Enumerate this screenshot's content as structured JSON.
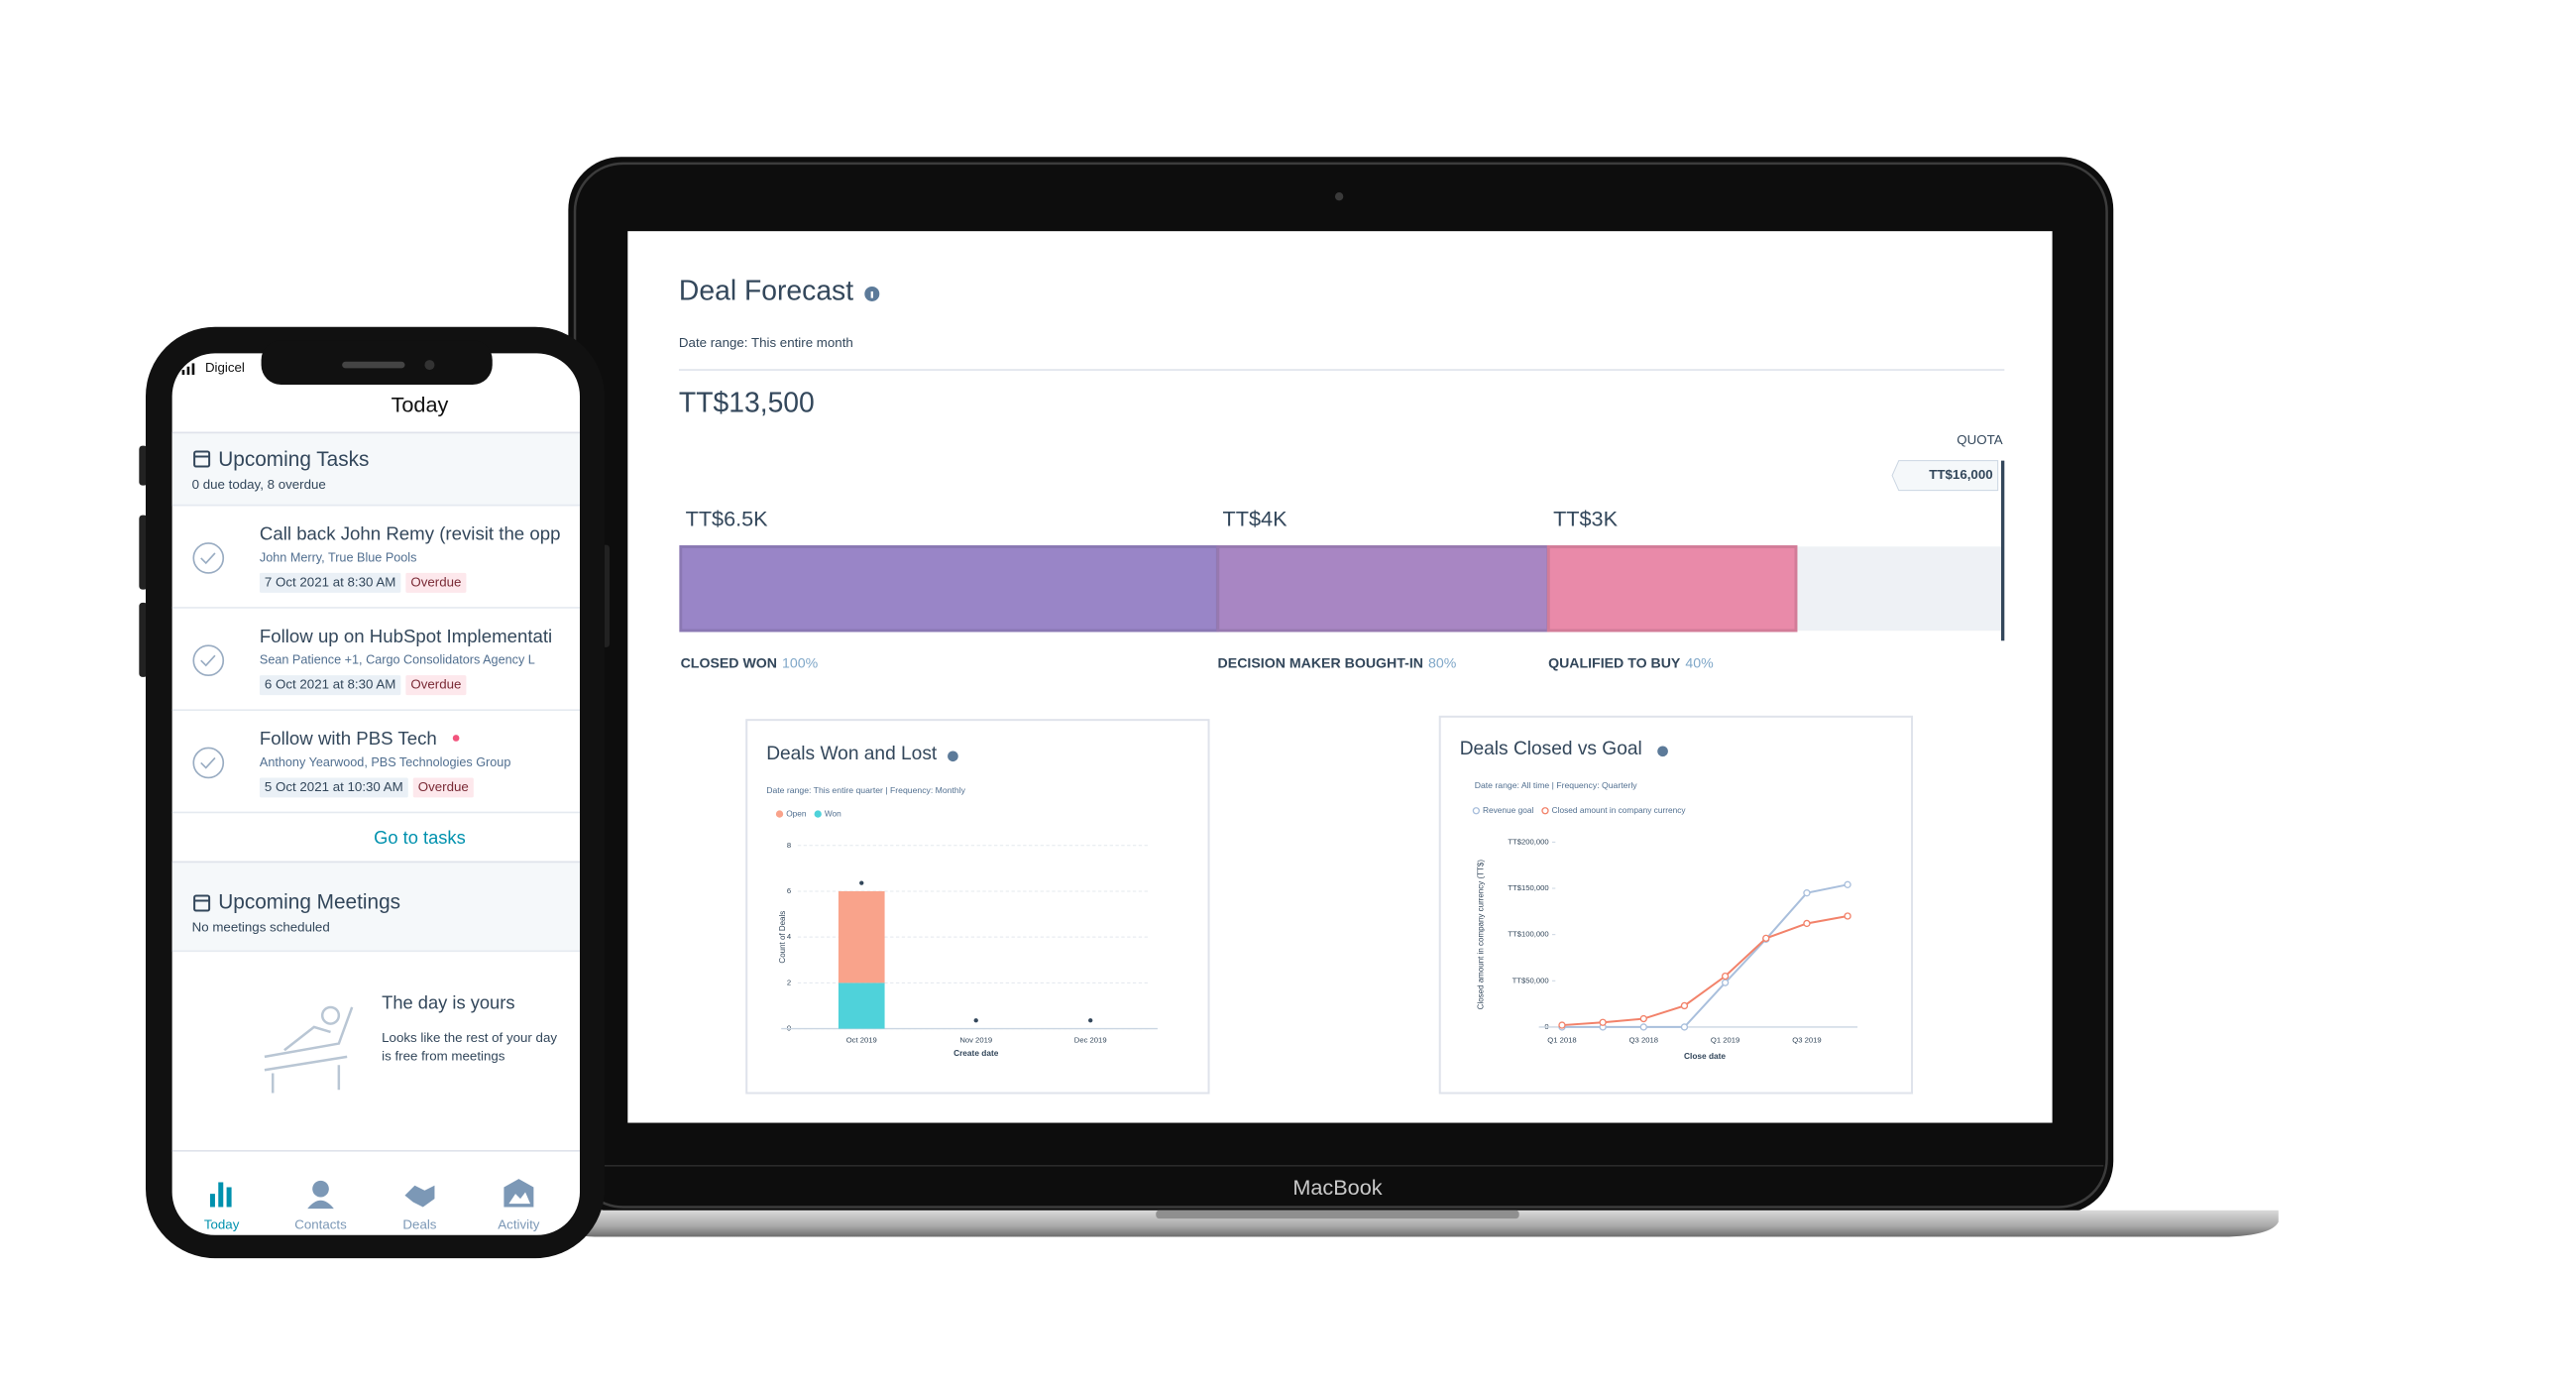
{
  "phone": {
    "carrier": "Digicel",
    "header": "Today",
    "tasks_section": {
      "title": "Upcoming Tasks",
      "summary": "0 due today, 8 overdue",
      "tasks": [
        {
          "title": "Call back John Remy (revisit the opp",
          "contacts": "John Merry, True Blue Pools",
          "due": "7 Oct 2021 at 8:30 AM",
          "status": "Overdue"
        },
        {
          "title": "Follow up on HubSpot Implementati",
          "contacts": "Sean Patience +1, Cargo Consolidators Agency L",
          "due": "6 Oct 2021 at 8:30 AM",
          "status": "Overdue"
        },
        {
          "title": "Follow with PBS Tech",
          "contacts": "Anthony Yearwood, PBS Technologies Group",
          "due": "5 Oct 2021 at 10:30 AM",
          "status": "Overdue"
        }
      ],
      "link": "Go to tasks"
    },
    "meetings_section": {
      "title": "Upcoming Meetings",
      "summary": "No meetings scheduled",
      "empty_title": "The day is yours",
      "empty_lines": [
        "Looks like the rest of your day",
        "is free from meetings"
      ]
    },
    "tabs": [
      "Today",
      "Contacts",
      "Deals",
      "Activity"
    ]
  },
  "laptop": {
    "brand": "MacBook",
    "deal_forecast": {
      "title": "Deal Forecast",
      "date_range": "Date range: This entire month",
      "total": "TT$13,500",
      "quota_label": "QUOTA",
      "quota": {
        "value": 16000,
        "label": "TT$16,000"
      },
      "stages": [
        {
          "name": "CLOSED WON",
          "probability": "100%",
          "amount": {
            "value": 6500,
            "label": "TT$6.5K"
          },
          "color": "#9985c7"
        },
        {
          "name": "DECISION MAKER BOUGHT-IN",
          "probability": "80%",
          "amount": {
            "value": 4000,
            "label": "TT$4K"
          },
          "color": "#a886c3"
        },
        {
          "name": "QUALIFIED TO BUY",
          "probability": "40%",
          "amount": {
            "value": 3000,
            "label": "TT$3K"
          },
          "color": "#e98aa9"
        }
      ]
    },
    "charts": [
      {
        "type": "bar",
        "stacked": true,
        "title": "Deals Won and Lost",
        "subtitle": "Date range: This entire quarter  |  Frequency: Monthly",
        "categories": [
          "Oct 2019",
          "Nov 2019",
          "Dec 2019"
        ],
        "series": [
          {
            "name": "Open",
            "color": "#f9a38b",
            "values": [
              4,
              0,
              0
            ]
          },
          {
            "name": "Won",
            "color": "#4fd2da",
            "values": [
              2,
              0,
              0
            ]
          }
        ],
        "ylim": [
          0,
          8
        ],
        "yticks": [
          0,
          2,
          4,
          6,
          8
        ],
        "grid": true,
        "xlabel": "Create date",
        "ylabel": "Count of Deals"
      },
      {
        "type": "line",
        "title": "Deals Closed vs Goal",
        "subtitle": "Date range: All time  |  Frequency: Quarterly",
        "categories": [
          "Q1 2018",
          null,
          "Q3 2018",
          null,
          "Q1 2019",
          null,
          "Q3 2019",
          null
        ],
        "series": [
          {
            "name": "Revenue goal",
            "color": "#a9bfdc",
            "values": [
              0,
              0,
              0,
              0,
              48000,
              95000,
              145000,
              154000
            ]
          },
          {
            "name": "Closed amount in company currency",
            "color": "#f2826a",
            "values": [
              2000,
              5000,
              9000,
              23000,
              55000,
              96000,
              112000,
              120000
            ]
          }
        ],
        "ylim": [
          0,
          200000
        ],
        "yticks": [
          0,
          {
            "value": 50000,
            "label": "TT$50,000"
          },
          {
            "value": 100000,
            "label": "TT$100,000"
          },
          {
            "value": 150000,
            "label": "TT$150,000"
          },
          {
            "value": 200000,
            "label": "TT$200,000"
          }
        ],
        "grid": false,
        "xlabel": "Close date",
        "ylabel": "Closed amount in company currency (TT$)"
      }
    ]
  }
}
